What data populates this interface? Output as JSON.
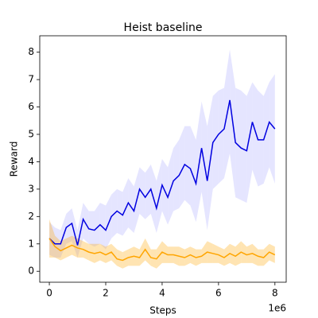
{
  "chart_data": {
    "type": "line",
    "title": "Heist baseline",
    "x_label": "Steps",
    "y_label": "Reward",
    "x_offset_label": "1e6",
    "x": [
      0,
      0.2,
      0.4,
      0.6,
      0.8,
      1.0,
      1.2,
      1.4,
      1.6,
      1.8,
      2.0,
      2.2,
      2.4,
      2.6,
      2.8,
      3.0,
      3.2,
      3.4,
      3.6,
      3.8,
      4.0,
      4.2,
      4.4,
      4.6,
      4.8,
      5.0,
      5.2,
      5.4,
      5.6,
      5.8,
      6.0,
      6.2,
      6.4,
      6.6,
      6.8,
      7.0,
      7.2,
      7.4,
      7.6,
      7.8,
      8.0
    ],
    "series": [
      {
        "color": "#0000e0",
        "band_color": "#0000ff",
        "values": [
          1.2,
          1.0,
          1.0,
          1.6,
          1.75,
          0.95,
          1.9,
          1.55,
          1.5,
          1.7,
          1.5,
          2.0,
          2.2,
          2.05,
          2.5,
          2.2,
          3.0,
          2.7,
          3.0,
          2.3,
          3.15,
          2.7,
          3.3,
          3.5,
          3.9,
          3.75,
          3.2,
          4.5,
          3.3,
          4.7,
          5.0,
          5.2,
          6.25,
          4.7,
          4.5,
          4.4,
          5.45,
          4.8,
          4.8,
          5.45,
          5.2
        ],
        "upper": [
          1.8,
          1.6,
          1.5,
          2.1,
          2.3,
          1.5,
          2.5,
          2.2,
          2.2,
          2.5,
          2.4,
          2.8,
          3.0,
          2.9,
          3.4,
          3.1,
          3.8,
          3.6,
          3.9,
          3.3,
          4.1,
          3.8,
          4.5,
          4.8,
          5.3,
          5.3,
          4.8,
          6.2,
          5.3,
          6.4,
          6.6,
          6.7,
          8.1,
          6.7,
          6.6,
          6.4,
          6.9,
          6.6,
          6.4,
          6.9,
          7.2
        ],
        "lower": [
          0.6,
          0.5,
          0.5,
          1.0,
          1.1,
          0.5,
          1.2,
          1.0,
          0.9,
          1.0,
          0.8,
          1.2,
          1.4,
          1.3,
          1.6,
          1.4,
          2.1,
          1.9,
          2.1,
          1.4,
          2.2,
          1.7,
          2.2,
          2.3,
          2.6,
          2.4,
          1.8,
          2.9,
          1.5,
          3.0,
          3.2,
          3.4,
          4.3,
          2.7,
          2.6,
          2.5,
          3.7,
          3.1,
          3.2,
          3.8,
          3.2
        ],
        "band_opacity": 0.1
      },
      {
        "color": "#ffa500",
        "band_color": "#ffa500",
        "values": [
          1.2,
          0.9,
          0.75,
          0.85,
          0.95,
          0.85,
          0.8,
          0.7,
          0.65,
          0.7,
          0.6,
          0.7,
          0.45,
          0.4,
          0.5,
          0.55,
          0.5,
          0.8,
          0.5,
          0.45,
          0.7,
          0.6,
          0.6,
          0.55,
          0.5,
          0.6,
          0.5,
          0.55,
          0.7,
          0.65,
          0.6,
          0.5,
          0.65,
          0.55,
          0.7,
          0.6,
          0.65,
          0.55,
          0.5,
          0.7,
          0.6
        ],
        "upper": [
          1.9,
          1.3,
          1.1,
          1.2,
          1.3,
          1.2,
          1.1,
          1.0,
          1.0,
          1.0,
          0.9,
          1.0,
          0.8,
          0.7,
          0.8,
          0.9,
          0.8,
          1.2,
          0.8,
          0.8,
          1.1,
          0.9,
          0.9,
          0.9,
          0.8,
          0.9,
          0.8,
          0.8,
          1.1,
          1.0,
          0.9,
          0.8,
          1.0,
          0.9,
          1.1,
          0.9,
          1.0,
          0.8,
          0.8,
          1.0,
          0.9
        ],
        "lower": [
          0.5,
          0.5,
          0.4,
          0.5,
          0.6,
          0.5,
          0.5,
          0.4,
          0.3,
          0.4,
          0.3,
          0.4,
          0.2,
          0.1,
          0.2,
          0.2,
          0.2,
          0.4,
          0.2,
          0.1,
          0.3,
          0.3,
          0.3,
          0.2,
          0.2,
          0.3,
          0.2,
          0.3,
          0.3,
          0.3,
          0.3,
          0.2,
          0.3,
          0.2,
          0.3,
          0.3,
          0.3,
          0.2,
          0.2,
          0.4,
          0.3
        ],
        "band_opacity": 0.3
      }
    ],
    "xlim": [
      -0.34,
      8.4
    ],
    "ylim": [
      -0.4,
      8.6
    ],
    "xticks": [
      0,
      2,
      4,
      6,
      8
    ],
    "yticks": [
      0,
      1,
      2,
      3,
      4,
      5,
      6,
      7,
      8
    ],
    "grid": false
  }
}
